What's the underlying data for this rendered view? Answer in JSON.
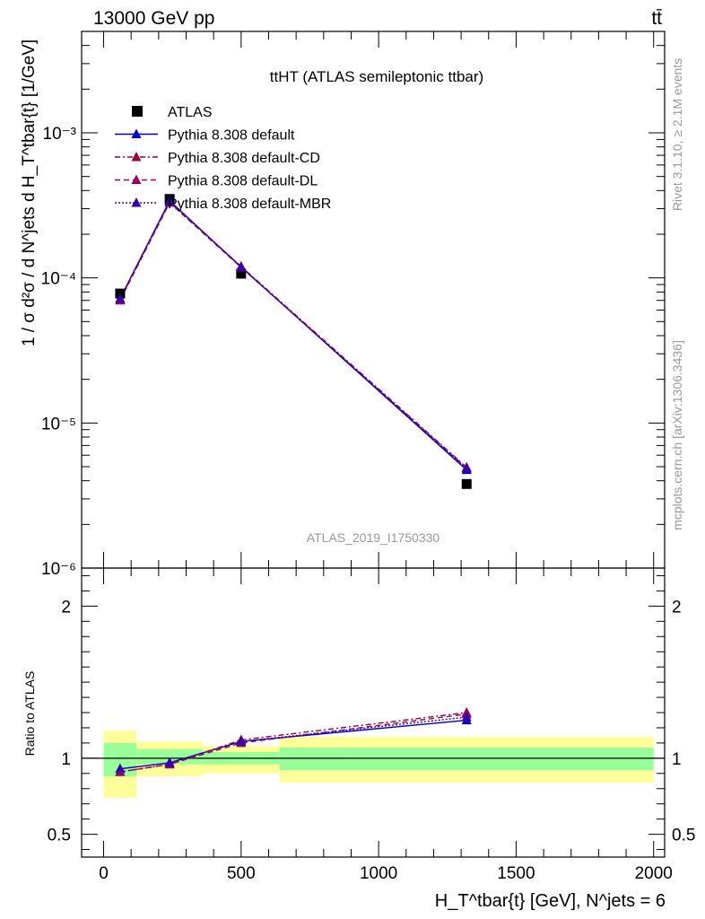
{
  "header": {
    "left": "13000 GeV pp",
    "right": "tt̄"
  },
  "side_text": {
    "rivet": "Rivet 3.1.10, ≥ 2.1M events",
    "mcplots": "mcplots.cern.ch [arXiv:1306.3436]"
  },
  "chart_data": [
    {
      "type": "scatter",
      "title": "ttHT (ATLAS semileptonic ttbar)",
      "analysis_label": "ATLAS_2019_I1750330",
      "ylabel": "1 / σ d²σ / d N^jets d H_T^tbar{t} [1/GeV]",
      "xlabel": "H_T^tbar{t} [GeV], N^jets = 6",
      "xlim": [
        -80,
        2040
      ],
      "ylim": [
        1e-06,
        0.005
      ],
      "yscale": "log",
      "y_ticks": [
        {
          "value": 1e-06,
          "label": "10⁻⁶"
        },
        {
          "value": 1e-05,
          "label": "10⁻⁵"
        },
        {
          "value": 0.0001,
          "label": "10⁻⁴"
        },
        {
          "value": 0.001,
          "label": "10⁻³"
        }
      ],
      "legend_position": "top-left",
      "series": [
        {
          "name": "ATLAS",
          "color": "#000000",
          "marker": "square",
          "line": "none",
          "x": [
            60,
            240,
            500,
            1320
          ],
          "y": [
            7.8e-05,
            0.00035,
            0.000107,
            3.8e-06
          ]
        },
        {
          "name": "Pythia 8.308 default",
          "color": "#0000cc",
          "marker": "triangle",
          "line": "solid",
          "x": [
            60,
            240,
            500,
            1320
          ],
          "y": [
            7.2e-05,
            0.00034,
            0.000119,
            4.75e-06
          ]
        },
        {
          "name": "Pythia 8.308 default-CD",
          "color": "#990033",
          "marker": "triangle",
          "line": "dashdot",
          "x": [
            60,
            240,
            500,
            1320
          ],
          "y": [
            7.1e-05,
            0.000335,
            0.00012,
            4.95e-06
          ]
        },
        {
          "name": "Pythia 8.308 default-DL",
          "color": "#990066",
          "marker": "triangle",
          "line": "dashed",
          "x": [
            60,
            240,
            500,
            1320
          ],
          "y": [
            7e-05,
            0.00033,
            0.000118,
            4.9e-06
          ]
        },
        {
          "name": "Pythia 8.308 default-MBR",
          "color": "#3300aa",
          "marker": "triangle",
          "line": "dotted",
          "x": [
            60,
            240,
            500,
            1320
          ],
          "y": [
            7.2e-05,
            0.000335,
            0.000119,
            4.85e-06
          ]
        }
      ]
    },
    {
      "type": "scatter",
      "ylabel": "Ratio to ATLAS",
      "xlim": [
        -80,
        2040
      ],
      "ylim": [
        0.35,
        2.25
      ],
      "x_ticks": [
        0,
        500,
        1000,
        1500,
        2000
      ],
      "y_ticks": [
        0.5,
        1,
        2
      ],
      "reference_line": 1,
      "bands": [
        {
          "x_low": 0,
          "x_high": 120,
          "inner": [
            0.88,
            1.1
          ],
          "outer": [
            0.74,
            1.18
          ]
        },
        {
          "x_low": 120,
          "x_high": 360,
          "inner": [
            0.96,
            1.06
          ],
          "outer": [
            0.88,
            1.11
          ]
        },
        {
          "x_low": 360,
          "x_high": 640,
          "inner": [
            0.96,
            1.04
          ],
          "outer": [
            0.9,
            1.08
          ]
        },
        {
          "x_low": 640,
          "x_high": 2000,
          "inner": [
            0.92,
            1.07
          ],
          "outer": [
            0.84,
            1.14
          ]
        }
      ],
      "band_colors": {
        "inner": "#99ff99",
        "outer": "#ffff99"
      },
      "series": [
        {
          "name": "Pythia 8.308 default",
          "color": "#0000cc",
          "line": "solid",
          "x": [
            60,
            240,
            500,
            1320
          ],
          "y": [
            0.93,
            0.97,
            1.11,
            1.25
          ]
        },
        {
          "name": "Pythia 8.308 default-CD",
          "color": "#990033",
          "line": "dashdot",
          "x": [
            60,
            240,
            500,
            1320
          ],
          "y": [
            0.91,
            0.96,
            1.12,
            1.3
          ]
        },
        {
          "name": "Pythia 8.308 default-DL",
          "color": "#990066",
          "line": "dashed",
          "x": [
            60,
            240,
            500,
            1320
          ],
          "y": [
            0.91,
            0.96,
            1.1,
            1.29
          ]
        },
        {
          "name": "Pythia 8.308 default-MBR",
          "color": "#3300aa",
          "line": "dotted",
          "x": [
            60,
            240,
            500,
            1320
          ],
          "y": [
            0.93,
            0.97,
            1.11,
            1.27
          ]
        }
      ]
    }
  ]
}
